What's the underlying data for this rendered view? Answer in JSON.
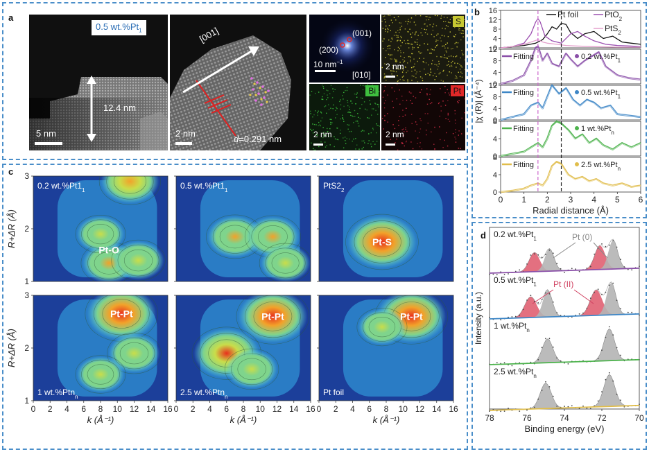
{
  "panel_a": {
    "label": "a",
    "tem_overview": {
      "sample": "0.5 wt.%Pt",
      "sample_sub": "1",
      "height": "12.4 nm",
      "scalebar": "5 nm"
    },
    "hrtem": {
      "direction": "[001]",
      "scalebar": "2 nm",
      "d_spacing_prefix": "d",
      "d_spacing_value": "=0.291 nm"
    },
    "fft": {
      "spot1": "(001)",
      "spot2": "(200)",
      "scalebar": "10 nm",
      "scalebar_sup": "−1",
      "axis": "[010]"
    },
    "maps": [
      {
        "element": "S",
        "scalebar": "2 nm",
        "color": "#d8d23a",
        "badge": "#c8c832"
      },
      {
        "element": "Bi",
        "scalebar": "2 nm",
        "color": "#3ec83e",
        "badge": "#3fbf3f"
      },
      {
        "element": "Pt",
        "scalebar": "2 nm",
        "color": "#e0304a",
        "badge": "#e02828"
      }
    ]
  },
  "panel_b": {
    "label": "b",
    "ylabel": "|χ (R)| (Å⁻⁴)",
    "xlabel": "Radial distance (Å)",
    "ref_legend": {
      "pt_foil": "Pt foil",
      "pto2": "PtO",
      "pto2_sub": "2",
      "pts2": "PtS",
      "pts2_sub": "2"
    },
    "rows": [
      {
        "fit": "Fitting",
        "sample": "0.2 wt.%Pt",
        "sub": "1",
        "color": "#8a4fa8"
      },
      {
        "fit": "Fitting",
        "sample": "0.5 wt.%Pt",
        "sub": "1",
        "color": "#3d86c6"
      },
      {
        "fit": "Fitting",
        "sample": "1 wt.%Pt",
        "sub": "n",
        "color": "#4cb34c"
      },
      {
        "fit": "Fitting",
        "sample": "2.5 wt.%Pt",
        "sub": "n",
        "color": "#e0bd4a"
      }
    ]
  },
  "panel_c": {
    "label": "c",
    "ylabel": "R+ΔR (Å)",
    "xlabel": "k (Å⁻¹)",
    "maps": [
      {
        "title": "0.2 wt.%Pt",
        "sub": "1",
        "peak": "Pt-O"
      },
      {
        "title": "0.5 wt.%Pt",
        "sub": "1",
        "peak": ""
      },
      {
        "title": "PtS",
        "sub": "2",
        "peak": "Pt-S"
      },
      {
        "title": "1 wt.%Pt",
        "sub": "n",
        "peak": "Pt-Pt"
      },
      {
        "title": "2.5 wt.%Pt",
        "sub": "n",
        "peak": "Pt-Pt"
      },
      {
        "title": "Pt foil",
        "sub": "",
        "peak": "Pt-Pt"
      }
    ]
  },
  "panel_d": {
    "label": "d",
    "ylabel": "Intensity (a.u.)",
    "xlabel": "Binding energy (eV)",
    "pt0": "Pt (0)",
    "pt2": "Pt (II)",
    "rows": [
      {
        "sample": "0.2 wt.%Pt",
        "sub": "1"
      },
      {
        "sample": "0.5 wt.%Pt",
        "sub": "1"
      },
      {
        "sample": "1 wt.%Pt",
        "sub": "n"
      },
      {
        "sample": "2.5 wt.%Pt",
        "sub": "n"
      }
    ]
  },
  "chart_data": [
    {
      "type": "line",
      "panel": "b",
      "xlabel": "Radial distance (Å)",
      "ylabel": "|χ (R)| (Å⁻⁴)",
      "xlim": [
        0,
        6
      ],
      "xticks": [
        0,
        1,
        2,
        3,
        4,
        5,
        6
      ],
      "reference_lines": [
        {
          "x": 1.6,
          "color": "#cc66cc"
        },
        {
          "x": 2.6,
          "color": "#222222"
        }
      ],
      "subplots": [
        {
          "ylim": [
            0,
            16
          ],
          "yticks": [
            0,
            4,
            8,
            12,
            16
          ],
          "series": [
            {
              "name": "Pt foil",
              "color": "#111111",
              "x": [
                0,
                0.5,
                1,
                1.5,
                1.8,
                2.0,
                2.2,
                2.4,
                2.6,
                2.8,
                3.0,
                3.3,
                3.6,
                4.0,
                4.4,
                4.8,
                5.2,
                5.6,
                6.0
              ],
              "y": [
                0,
                0.5,
                1,
                2,
                3.5,
                6,
                9,
                8,
                10.5,
                10,
                6.5,
                4,
                6,
                7,
                4,
                5,
                2.5,
                2,
                1.5
              ]
            },
            {
              "name": "PtO2",
              "color": "#9b4fb0",
              "x": [
                0,
                0.5,
                1,
                1.3,
                1.5,
                1.6,
                1.7,
                1.9,
                2.2,
                2.6,
                3.0,
                3.3,
                3.6,
                4.0,
                4.5,
                5.0,
                5.5,
                6.0
              ],
              "y": [
                0,
                0.5,
                2,
                6,
                11,
                12.5,
                11,
                5,
                3,
                2,
                6,
                7,
                5,
                3,
                1.5,
                1,
                0.8,
                0.5
              ]
            },
            {
              "name": "PtS2",
              "color": "#e4a0cc",
              "x": [
                0,
                0.5,
                1,
                1.3,
                1.6,
                1.8,
                2.0,
                2.4,
                2.8,
                3.2,
                4.0,
                5.0,
                6.0
              ],
              "y": [
                0,
                0.5,
                1.5,
                2.5,
                3.5,
                2.5,
                2,
                1.5,
                1,
                0.8,
                0.5,
                0.3,
                0.3
              ]
            }
          ]
        },
        {
          "ylim": [
            0,
            12
          ],
          "yticks": [
            0,
            4,
            8,
            12
          ],
          "series": [
            {
              "name": "0.2 wt.%Pt1",
              "color": "#8a4fa8",
              "x": [
                0,
                0.5,
                1,
                1.3,
                1.5,
                1.6,
                1.8,
                2.0,
                2.2,
                2.5,
                2.8,
                3.0,
                3.3,
                3.6,
                4.0,
                4.2,
                4.5,
                5.0,
                5.5,
                6.0
              ],
              "y": [
                0,
                1,
                3,
                8,
                12.5,
                13,
                8,
                10.5,
                7,
                6,
                10.5,
                8.5,
                6,
                8,
                10,
                11,
                6,
                3,
                2,
                1.5
              ]
            }
          ]
        },
        {
          "ylim": [
            0,
            12
          ],
          "yticks": [
            0,
            4,
            8,
            12
          ],
          "series": [
            {
              "name": "0.5 wt.%Pt1",
              "color": "#3d86c6",
              "x": [
                0,
                0.5,
                1,
                1.3,
                1.6,
                1.8,
                2.0,
                2.2,
                2.5,
                2.8,
                3.1,
                3.4,
                3.7,
                4.0,
                4.3,
                4.7,
                5.0,
                5.5,
                6.0
              ],
              "y": [
                0,
                1,
                2,
                5,
                6,
                4,
                8,
                12,
                9,
                11,
                7,
                5,
                7,
                6,
                4,
                5,
                2,
                1.5,
                1
              ]
            }
          ]
        },
        {
          "ylim": [
            0,
            8
          ],
          "yticks": [
            0,
            4,
            8
          ],
          "series": [
            {
              "name": "1 wt.%Ptn",
              "color": "#4cb34c",
              "x": [
                0,
                0.5,
                1,
                1.3,
                1.6,
                1.8,
                2.0,
                2.2,
                2.4,
                2.6,
                2.9,
                3.2,
                3.5,
                3.8,
                4.1,
                4.4,
                4.8,
                5.2,
                5.6,
                6.0
              ],
              "y": [
                0,
                0.5,
                1,
                2,
                3,
                2,
                4,
                7,
                8,
                7.5,
                6,
                4,
                5,
                3,
                4,
                2.5,
                1.5,
                3,
                2,
                3
              ]
            }
          ]
        },
        {
          "ylim": [
            0,
            8
          ],
          "yticks": [
            0,
            4,
            8
          ],
          "series": [
            {
              "name": "2.5 wt.%Ptn",
              "color": "#e0bd4a",
              "x": [
                0,
                0.5,
                1,
                1.3,
                1.6,
                1.8,
                2.0,
                2.2,
                2.4,
                2.6,
                2.9,
                3.2,
                3.5,
                3.8,
                4.1,
                4.4,
                4.8,
                5.2,
                5.6,
                6.0
              ],
              "y": [
                0,
                0.3,
                0.8,
                1.5,
                2,
                1.5,
                3,
                6,
                7,
                6.5,
                4,
                3,
                3.5,
                2.5,
                3,
                2,
                1.5,
                2,
                1.2,
                1.5
              ]
            }
          ]
        }
      ]
    },
    {
      "type": "heatmap",
      "panel": "c",
      "xlabel": "k (Å⁻¹)",
      "ylabel": "R+ΔR (Å)",
      "xlim": [
        0,
        16
      ],
      "ylim": [
        1,
        3
      ],
      "xticks": [
        0,
        2,
        4,
        6,
        8,
        10,
        12,
        14,
        16
      ],
      "yticks": [
        1,
        2,
        3
      ],
      "colormap": [
        "#1c3f9a",
        "#2e8ccf",
        "#4fc3e8",
        "#7fd48c",
        "#c9dd4a",
        "#f2a22a",
        "#e8301c"
      ],
      "maps": [
        {
          "title": "0.2 wt.%Pt1",
          "peaks": [
            {
              "k": 11.5,
              "r": 2.9,
              "amp": 0.7
            },
            {
              "k": 9.0,
              "r": 1.35,
              "amp": 0.55
            },
            {
              "k": 12.5,
              "r": 1.4,
              "amp": 0.5
            },
            {
              "k": 8.0,
              "r": 1.9,
              "amp": 0.4
            }
          ]
        },
        {
          "title": "0.5 wt.%Pt1",
          "peaks": [
            {
              "k": 7.0,
              "r": 1.85,
              "amp": 0.6
            },
            {
              "k": 11.5,
              "r": 1.85,
              "amp": 0.55
            },
            {
              "k": 13.0,
              "r": 1.35,
              "amp": 0.45
            }
          ]
        },
        {
          "title": "PtS2",
          "peaks": [
            {
              "k": 7.5,
              "r": 1.75,
              "amp": 1.0
            }
          ]
        },
        {
          "title": "1 wt.%Ptn",
          "peaks": [
            {
              "k": 10.5,
              "r": 2.65,
              "amp": 1.0
            },
            {
              "k": 12.0,
              "r": 1.9,
              "amp": 0.5
            },
            {
              "k": 8.0,
              "r": 1.5,
              "amp": 0.4
            }
          ]
        },
        {
          "title": "2.5 wt.%Ptn",
          "peaks": [
            {
              "k": 11.5,
              "r": 2.6,
              "amp": 1.0
            },
            {
              "k": 6.0,
              "r": 1.9,
              "amp": 0.9
            },
            {
              "k": 9.0,
              "r": 1.6,
              "amp": 0.5
            }
          ]
        },
        {
          "title": "Pt foil",
          "peaks": [
            {
              "k": 11.0,
              "r": 2.6,
              "amp": 1.0
            },
            {
              "k": 7.5,
              "r": 2.4,
              "amp": 0.4
            }
          ]
        }
      ]
    },
    {
      "type": "area",
      "panel": "d",
      "xlabel": "Binding energy (eV)",
      "ylabel": "Intensity (a.u.)",
      "xlim": [
        78,
        70
      ],
      "xticks": [
        78,
        76,
        74,
        72,
        70
      ],
      "rows": [
        {
          "sample": "0.2 wt.%Pt1",
          "baseline_color": "#8a4fa8",
          "peaks": [
            {
              "label": "Pt (II)",
              "center": 75.6,
              "height": 0.6,
              "width": 0.4,
              "color": "#e06072"
            },
            {
              "label": "Pt (0)",
              "center": 74.8,
              "height": 0.7,
              "width": 0.35,
              "color": "#b4b4b4"
            },
            {
              "label": "Pt (II)",
              "center": 72.1,
              "height": 0.75,
              "width": 0.4,
              "color": "#e06072"
            },
            {
              "label": "Pt (0)",
              "center": 71.4,
              "height": 0.9,
              "width": 0.35,
              "color": "#b4b4b4"
            }
          ]
        },
        {
          "sample": "0.5 wt.%Pt1",
          "baseline_color": "#3d86c6",
          "peaks": [
            {
              "label": "Pt (II)",
              "center": 75.8,
              "height": 0.65,
              "width": 0.45,
              "color": "#e06072"
            },
            {
              "label": "Pt (0)",
              "center": 74.9,
              "height": 0.85,
              "width": 0.35,
              "color": "#b4b4b4"
            },
            {
              "label": "Pt (II)",
              "center": 72.3,
              "height": 0.8,
              "width": 0.45,
              "color": "#e06072"
            },
            {
              "label": "Pt (0)",
              "center": 71.5,
              "height": 1.0,
              "width": 0.35,
              "color": "#b4b4b4"
            }
          ]
        },
        {
          "sample": "1 wt.%Ptn",
          "baseline_color": "#4cb34c",
          "peaks": [
            {
              "label": "Pt (0)",
              "center": 74.9,
              "height": 0.75,
              "width": 0.4,
              "color": "#b4b4b4"
            },
            {
              "label": "Pt (0)",
              "center": 71.6,
              "height": 1.0,
              "width": 0.4,
              "color": "#b4b4b4"
            }
          ]
        },
        {
          "sample": "2.5 wt.%Ptn",
          "baseline_color": "#e0bd4a",
          "peaks": [
            {
              "label": "Pt (0)",
              "center": 75.0,
              "height": 0.8,
              "width": 0.42,
              "color": "#b4b4b4"
            },
            {
              "label": "Pt (0)",
              "center": 71.6,
              "height": 1.0,
              "width": 0.42,
              "color": "#b4b4b4"
            }
          ]
        }
      ]
    }
  ]
}
